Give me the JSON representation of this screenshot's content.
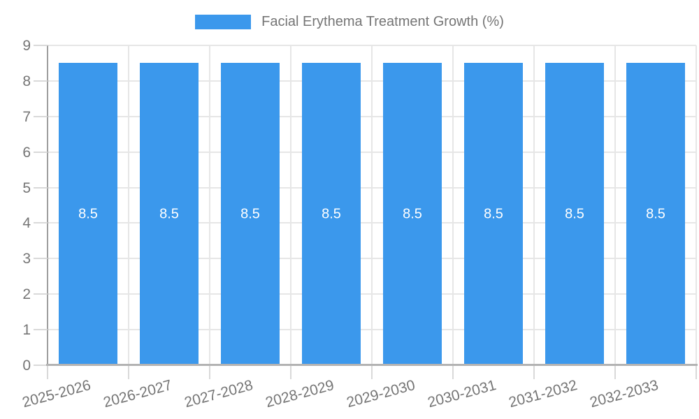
{
  "legend": {
    "label": "Facial Erythema Treatment Growth (%)"
  },
  "colors": {
    "bar": "#3b98ec",
    "bar_value_text": "#ffffff",
    "legend_text": "#757575",
    "axis_text": "#757575",
    "gridline": "#e6e6e6",
    "tick_mark": "#d9d9d9",
    "y_axis_line": "#9e9e9e",
    "x_axis_line": "#b3b3b3",
    "background": "#ffffff"
  },
  "chart_data": {
    "type": "bar",
    "title": "Facial Erythema Treatment Growth (%)",
    "categories": [
      "2025-2026",
      "2026-2027",
      "2027-2028",
      "2028-2029",
      "2029-2030",
      "2030-2031",
      "2031-2032",
      "2032-2033"
    ],
    "values": [
      8.5,
      8.5,
      8.5,
      8.5,
      8.5,
      8.5,
      8.5,
      8.5
    ],
    "value_labels": [
      "8.5",
      "8.5",
      "8.5",
      "8.5",
      "8.5",
      "8.5",
      "8.5",
      "8.5"
    ],
    "xlabel": "",
    "ylabel": "",
    "ylim": [
      0,
      9
    ],
    "yticks": [
      0,
      1,
      2,
      3,
      4,
      5,
      6,
      7,
      8,
      9
    ],
    "grid": true,
    "legend_position": "top-center",
    "x_tick_rotation_deg": -15,
    "bar_value_label_position": "middle-of-bar"
  }
}
